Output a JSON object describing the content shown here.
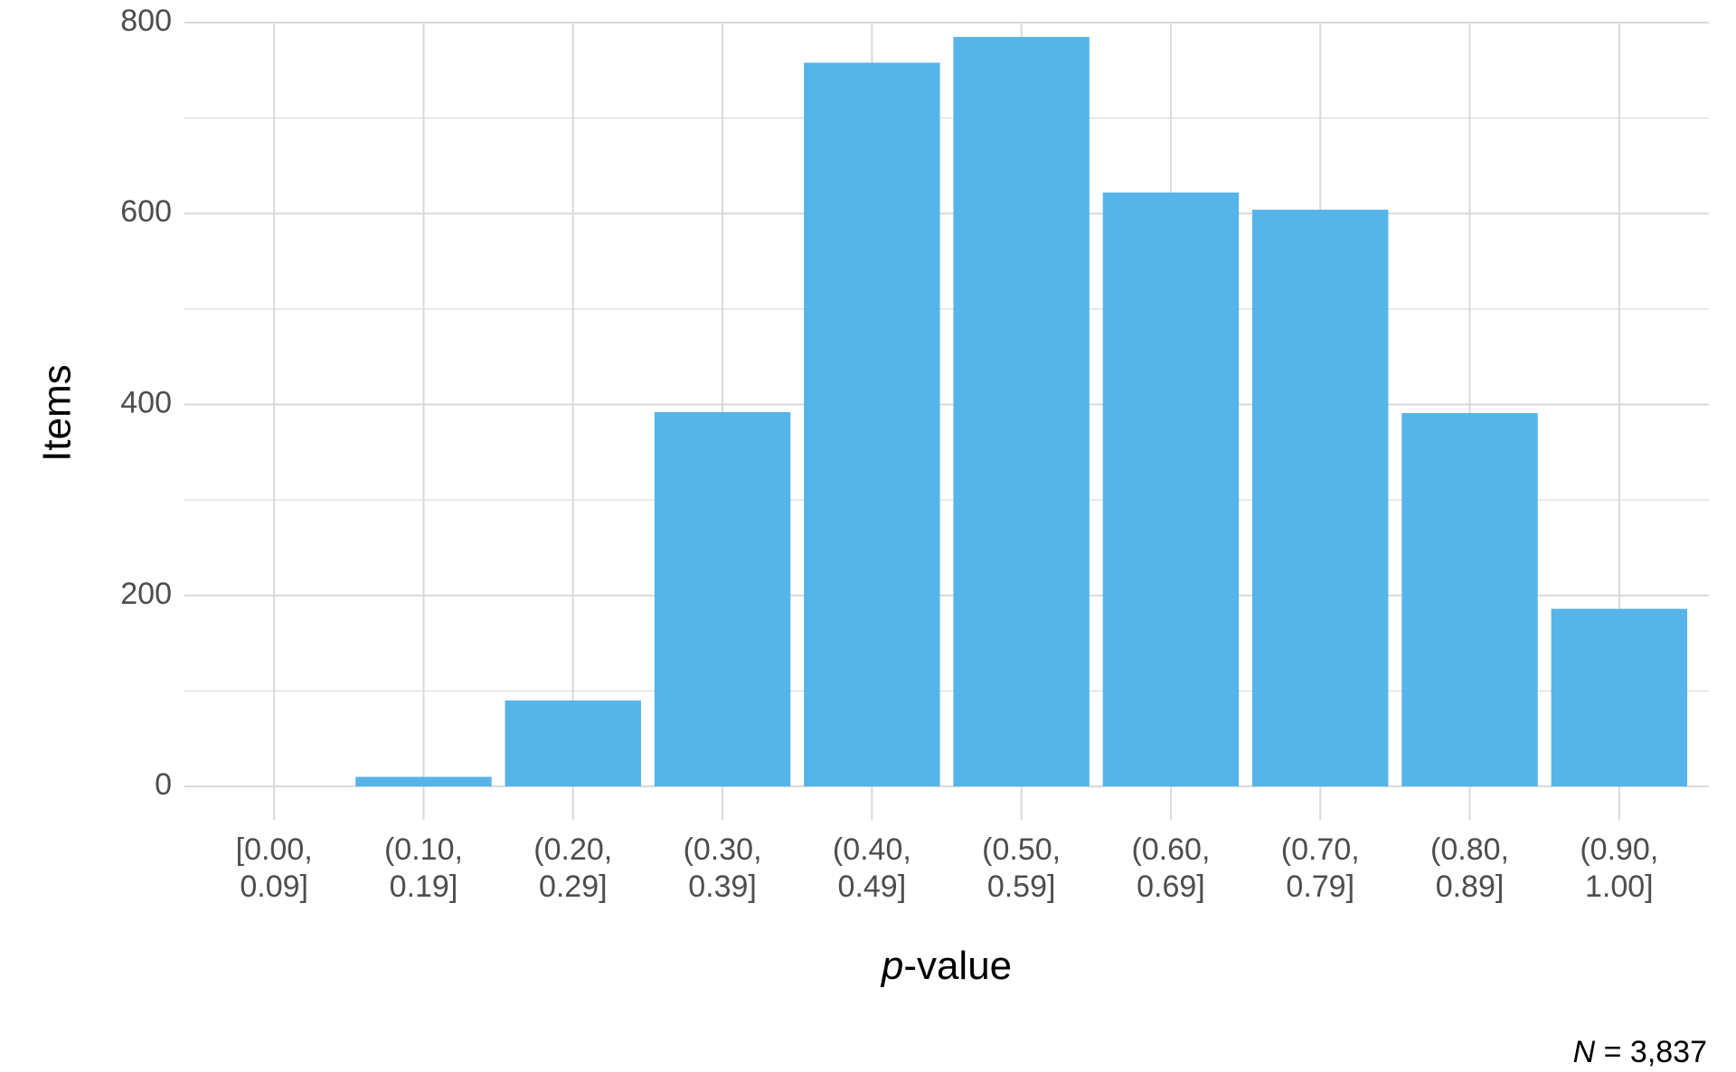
{
  "chart_data": {
    "type": "bar",
    "categories": [
      "[0.00, 0.09]",
      "(0.10, 0.19]",
      "(0.20, 0.29]",
      "(0.30, 0.39]",
      "(0.40, 0.49]",
      "(0.50, 0.59]",
      "(0.60, 0.69]",
      "(0.70, 0.79]",
      "(0.80, 0.89]",
      "(0.90, 1.00]"
    ],
    "values": [
      0,
      10,
      90,
      392,
      758,
      785,
      622,
      604,
      391,
      186
    ],
    "color": "#56b4e9",
    "ylabel": "Items",
    "xlabel": {
      "italic": "p",
      "rest": "-value"
    },
    "note": {
      "italic": "N",
      "rest": " = 3,837"
    },
    "ylim": [
      -35,
      800
    ],
    "yticks": [
      0,
      200,
      400,
      600,
      800
    ],
    "minor_yticks": [
      100,
      300,
      500,
      700
    ],
    "grid": true
  }
}
